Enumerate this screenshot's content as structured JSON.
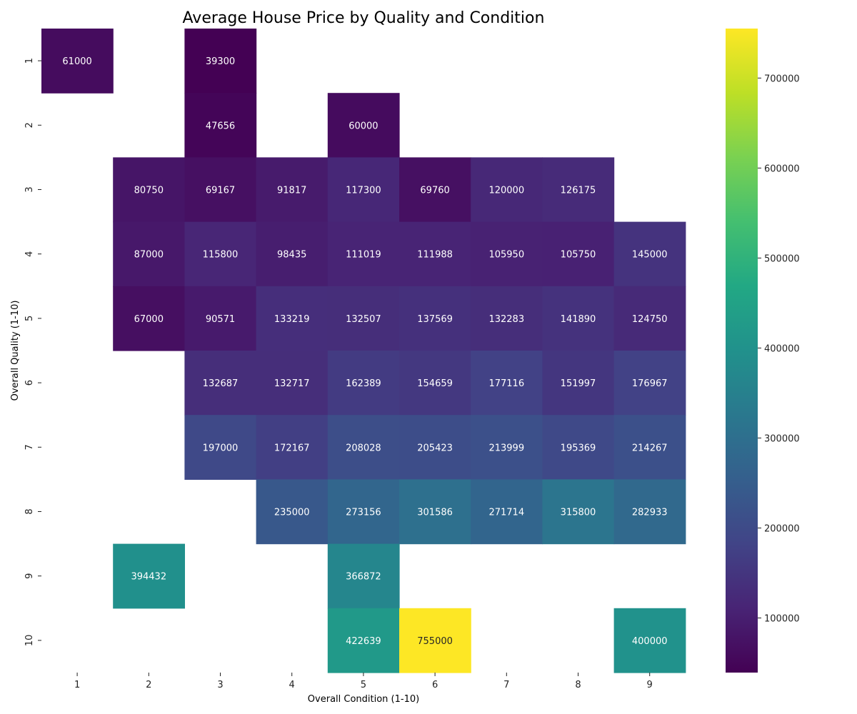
{
  "chart_data": {
    "type": "heatmap",
    "title": "Average House Price by Quality and Condition",
    "xlabel": "Overall Condition (1-10)",
    "ylabel": "Overall Quality (1-10)",
    "x_categories": [
      "1",
      "2",
      "3",
      "4",
      "5",
      "6",
      "7",
      "8",
      "9"
    ],
    "y_categories": [
      "1",
      "2",
      "3",
      "4",
      "5",
      "6",
      "7",
      "8",
      "9",
      "10"
    ],
    "values": [
      [
        61000,
        null,
        39300,
        null,
        null,
        null,
        null,
        null,
        null
      ],
      [
        null,
        null,
        47656,
        null,
        60000,
        null,
        null,
        null,
        null
      ],
      [
        null,
        80750,
        69167,
        91817,
        117300,
        69760,
        120000,
        126175,
        null
      ],
      [
        null,
        87000,
        115800,
        98435,
        111019,
        111988,
        105950,
        105750,
        145000
      ],
      [
        null,
        67000,
        90571,
        133219,
        132507,
        137569,
        132283,
        141890,
        124750
      ],
      [
        null,
        null,
        132687,
        132717,
        162389,
        154659,
        177116,
        151997,
        176967
      ],
      [
        null,
        null,
        197000,
        172167,
        208028,
        205423,
        213999,
        195369,
        214267
      ],
      [
        null,
        null,
        null,
        235000,
        273156,
        301586,
        271714,
        315800,
        282933
      ],
      [
        null,
        394432,
        null,
        null,
        366872,
        null,
        null,
        null,
        null
      ],
      [
        null,
        null,
        null,
        null,
        422639,
        755000,
        null,
        null,
        400000
      ]
    ],
    "colormap": "viridis",
    "vmin": 39300,
    "vmax": 755000,
    "colorbar_ticks": [
      "100000",
      "200000",
      "300000",
      "400000",
      "500000",
      "600000",
      "700000"
    ],
    "annotated": true,
    "grid": false,
    "legend": "colorbar-right"
  }
}
